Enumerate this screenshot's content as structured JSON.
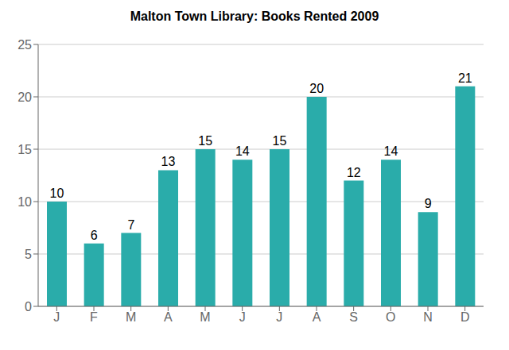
{
  "chart_data": {
    "type": "bar",
    "title": "Malton Town Library: Books Rented 2009",
    "categories": [
      "J",
      "F",
      "M",
      "A",
      "M",
      "J",
      "J",
      "A",
      "S",
      "O",
      "N",
      "D"
    ],
    "values": [
      10,
      6,
      7,
      13,
      15,
      14,
      15,
      20,
      12,
      14,
      9,
      21
    ],
    "color": "#2aacaa",
    "ylim": [
      0,
      25
    ],
    "yticks": [
      0,
      5,
      10,
      15,
      20,
      25
    ],
    "grid": true,
    "data_labels": true
  }
}
